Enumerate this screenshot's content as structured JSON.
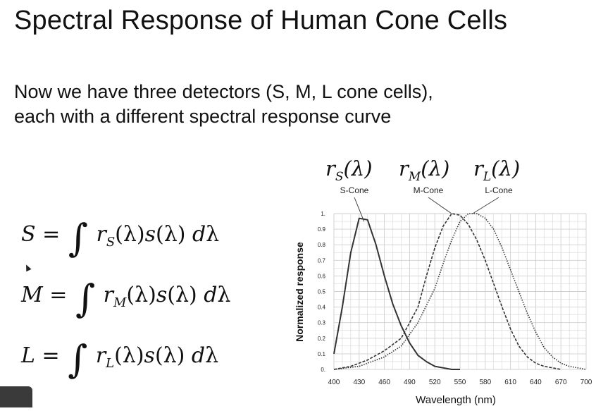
{
  "slide": {
    "title": "Spectral Response of Human Cone Cells",
    "subtitle_line1": "Now we have three detectors (S, M, L cone cells),",
    "subtitle_line2": "each with a different spectral response curve"
  },
  "equations": [
    {
      "lhs": "S",
      "sub": "S"
    },
    {
      "lhs": "M",
      "sub": "M"
    },
    {
      "lhs": "L",
      "sub": "L"
    }
  ],
  "function_labels": [
    {
      "r": "r",
      "sub": "S",
      "arg": "(λ)"
    },
    {
      "r": "r",
      "sub": "M",
      "arg": "(λ)"
    },
    {
      "r": "r",
      "sub": "L",
      "arg": "(λ)"
    }
  ],
  "chart_data": {
    "type": "line",
    "xlabel": "Wavelength (nm)",
    "ylabel": "Normalized response",
    "xlim": [
      400,
      700
    ],
    "ylim": [
      0,
      1
    ],
    "x_ticks": [
      "400",
      "430",
      "460",
      "490",
      "520",
      "550",
      "580",
      "610",
      "640",
      "670",
      "700"
    ],
    "y_ticks": [
      "0.",
      "0.1",
      "0.2",
      "0.3",
      "0.4",
      "0.5",
      "0.6",
      "0.7",
      "0.8",
      "0.9",
      "1."
    ],
    "grid": true,
    "series": [
      {
        "name": "S-Cone",
        "style": "solid",
        "x": [
          400,
          410,
          420,
          430,
          440,
          450,
          460,
          470,
          480,
          490,
          500,
          510,
          520,
          530,
          540,
          550
        ],
        "y": [
          0.1,
          0.4,
          0.75,
          0.97,
          0.96,
          0.8,
          0.6,
          0.42,
          0.28,
          0.17,
          0.09,
          0.05,
          0.02,
          0.01,
          0.0,
          0.0
        ]
      },
      {
        "name": "M-Cone",
        "style": "dashed",
        "x": [
          400,
          420,
          440,
          460,
          480,
          500,
          510,
          520,
          530,
          540,
          550,
          560,
          570,
          580,
          590,
          600,
          610,
          620,
          630,
          640,
          650,
          660,
          670
        ],
        "y": [
          0.0,
          0.02,
          0.06,
          0.12,
          0.2,
          0.4,
          0.6,
          0.78,
          0.92,
          1.0,
          0.99,
          0.93,
          0.83,
          0.7,
          0.55,
          0.4,
          0.26,
          0.15,
          0.08,
          0.04,
          0.02,
          0.01,
          0.0
        ]
      },
      {
        "name": "L-Cone",
        "style": "dotted",
        "x": [
          400,
          430,
          460,
          480,
          500,
          520,
          530,
          540,
          550,
          560,
          570,
          580,
          590,
          600,
          610,
          620,
          630,
          640,
          650,
          660,
          670,
          680,
          690,
          700
        ],
        "y": [
          0.0,
          0.02,
          0.08,
          0.15,
          0.3,
          0.52,
          0.68,
          0.83,
          0.95,
          1.0,
          1.0,
          0.97,
          0.9,
          0.78,
          0.64,
          0.5,
          0.36,
          0.24,
          0.14,
          0.08,
          0.04,
          0.02,
          0.01,
          0.0
        ]
      }
    ],
    "colors": {
      "line": "#333333",
      "grid": "#cfcfcf"
    }
  }
}
